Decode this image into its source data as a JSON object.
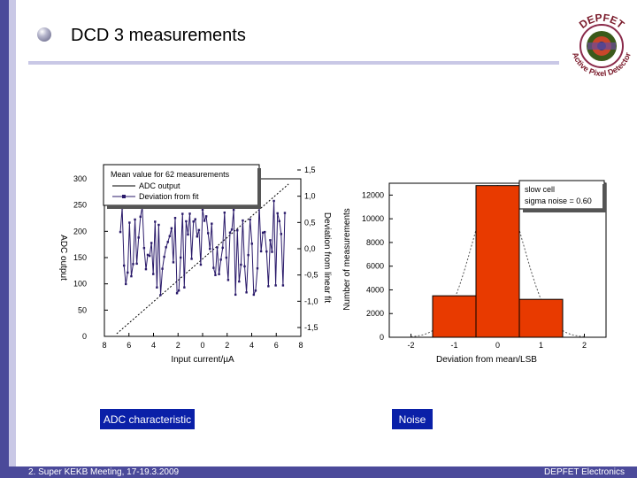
{
  "slide": {
    "title": "DCD 3 measurements",
    "footer_left": "2. Super KEKB Meeting, 17-19.3.2009",
    "footer_right": "DEPFET Electronics",
    "accent_color": "#4b4a9a",
    "caption_bg": "#0a20a8"
  },
  "logo": {
    "top_text": "DEPFET",
    "bottom_text": "Active Pixel Detector"
  },
  "captions": {
    "adc": "ADC characteristic",
    "noise": "Noise"
  },
  "chart_data": [
    {
      "type": "scatter",
      "title": "",
      "legend": {
        "title": "Mean value for 62 measurements",
        "items": [
          "ADC output",
          "Deviation from fit"
        ],
        "placement": "top-center"
      },
      "xlabel": "Input current/µA",
      "ylabel": "ADC output",
      "ylabel_right": "Deviation from linear fit",
      "xlim": [
        -8,
        8
      ],
      "ylim": [
        0,
        300
      ],
      "ylim_right": [
        -1.5,
        1.5
      ],
      "x_ticks": [
        "8",
        "6",
        "4",
        "2",
        "0",
        "2",
        "4",
        "6",
        "8"
      ],
      "y_ticks": [
        "0",
        "50",
        "100",
        "150",
        "200",
        "250",
        "300"
      ],
      "y_ticks_right": [
        "-1,5",
        "-1,0",
        "-0,5",
        "0,0",
        "0,5",
        "1,0",
        "1,5"
      ],
      "series": [
        {
          "name": "ADC output",
          "x": [
            -7,
            7
          ],
          "y": [
            5,
            290
          ]
        },
        {
          "name": "Deviation from fit",
          "amplitude_range": [
            -1.0,
            0.8
          ]
        }
      ]
    },
    {
      "type": "bar",
      "xlabel": "Deviation from mean/LSB",
      "ylabel": "Number of measurements",
      "xlim": [
        -2.5,
        2.5
      ],
      "ylim": [
        0,
        13000
      ],
      "x_ticks": [
        "-2",
        "-1",
        "0",
        "1",
        "2"
      ],
      "y_ticks": [
        "0",
        "2000",
        "4000",
        "6000",
        "8000",
        "10000",
        "12000"
      ],
      "categories": [
        -1,
        0,
        1
      ],
      "values": [
        3500,
        12800,
        3200
      ],
      "bar_color": "#e83a00",
      "annotation": [
        "slow cell",
        "sigma noise = 0.60"
      ]
    }
  ]
}
